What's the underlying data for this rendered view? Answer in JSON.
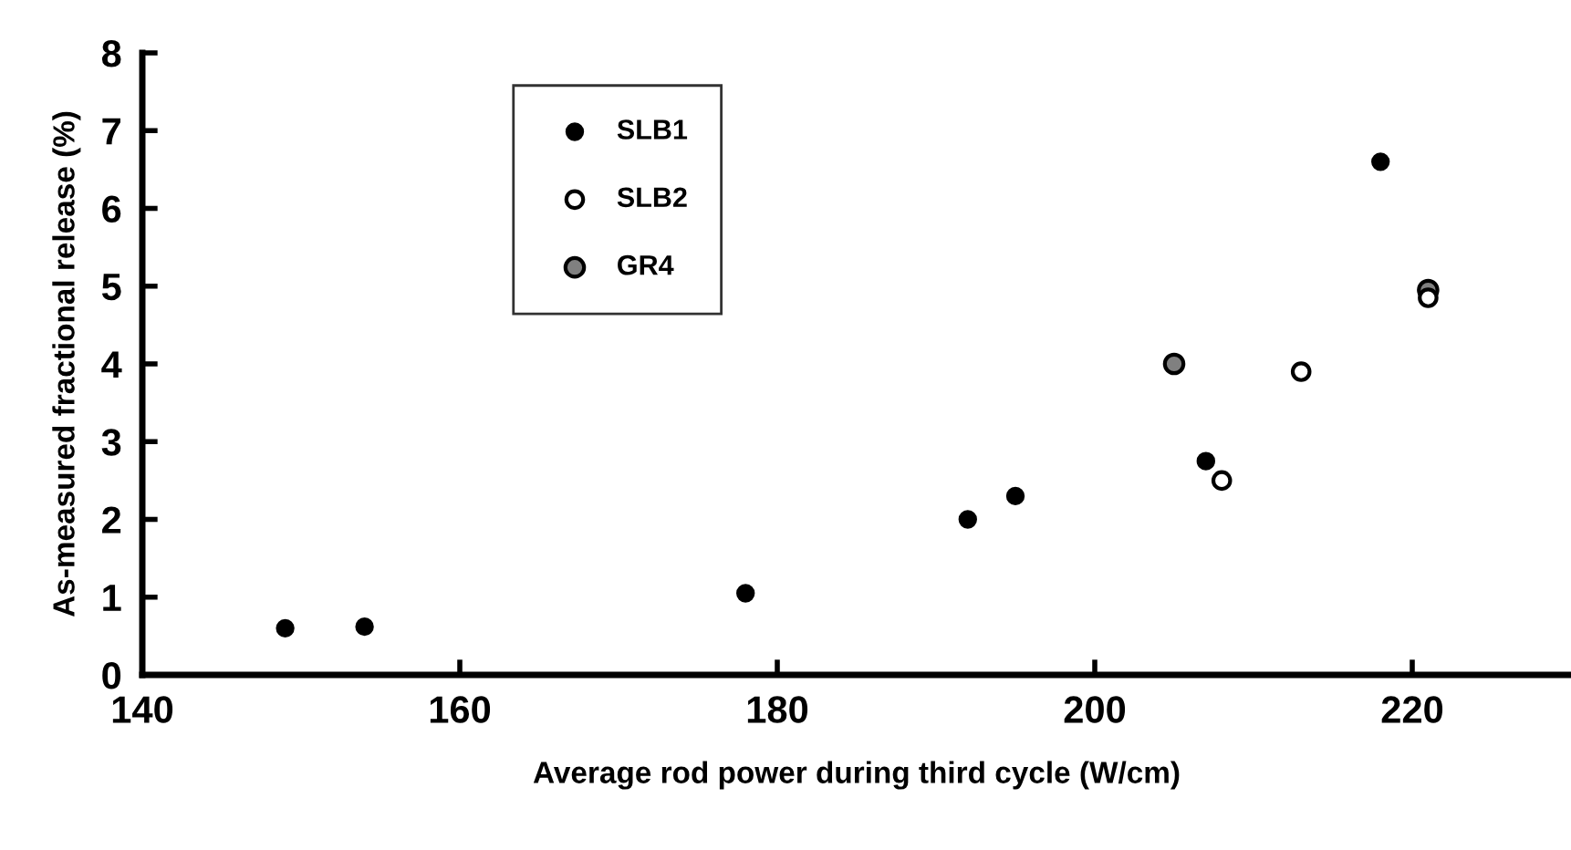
{
  "chart_data": {
    "type": "scatter",
    "xlabel": "Average rod power during third cycle (W/cm)",
    "ylabel": "As-measured fractional release (%)",
    "series": [
      {
        "name": "SLB1",
        "color": "#000000",
        "x": [
          149,
          154,
          178,
          192,
          195,
          207,
          218
        ],
        "values": [
          0.6,
          0.62,
          1.05,
          2.0,
          2.3,
          2.75,
          6.6
        ]
      },
      {
        "name": "SLB2",
        "color": "#ffffff",
        "x": [
          208,
          213,
          221
        ],
        "values": [
          2.5,
          3.9,
          4.85
        ]
      },
      {
        "name": "GR4",
        "color": "#808080",
        "x": [
          205,
          221
        ],
        "values": [
          4.0,
          4.95
        ]
      }
    ],
    "xlim": [
      140,
      230
    ],
    "xticks": [
      140,
      160,
      180,
      200,
      220
    ],
    "ylim": [
      0,
      8
    ],
    "yticks": [
      0,
      1,
      2,
      3,
      4,
      5,
      6,
      7,
      8
    ],
    "marker": "circle",
    "legend": "top left",
    "grid": false
  }
}
